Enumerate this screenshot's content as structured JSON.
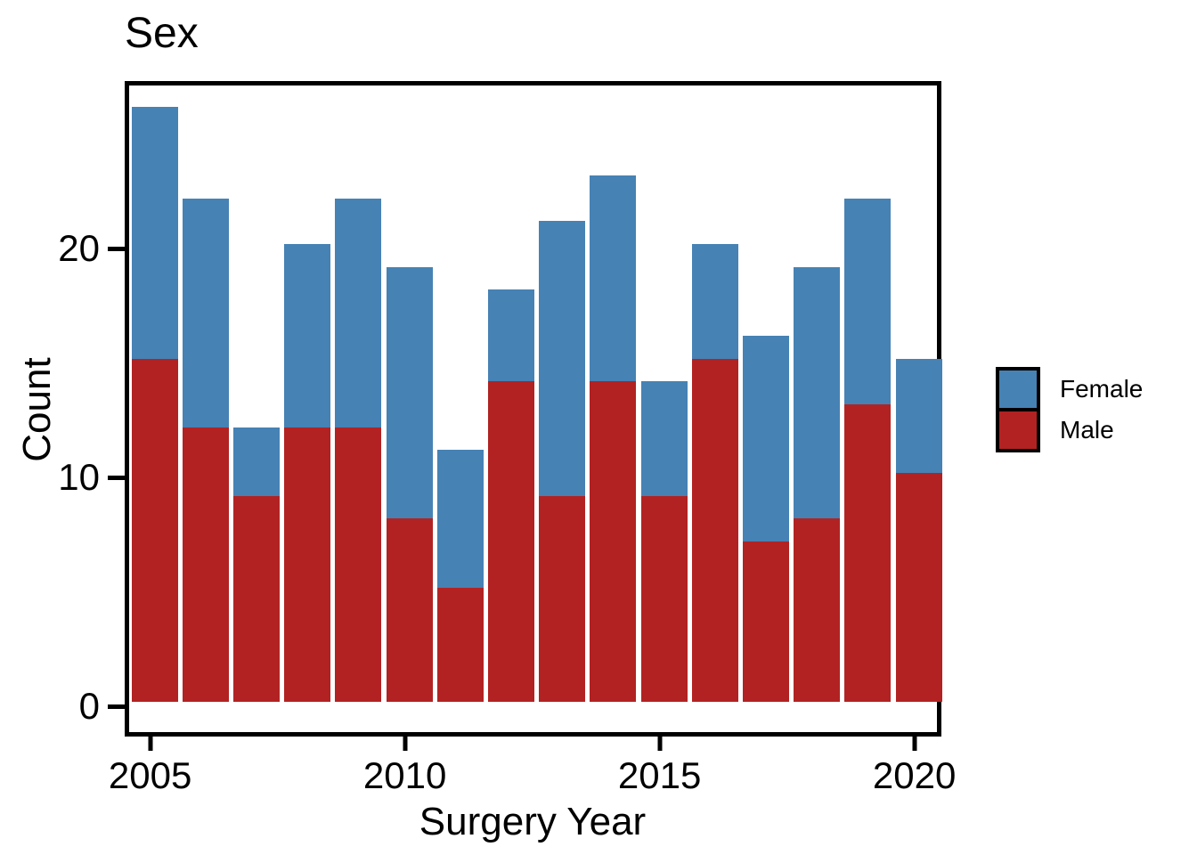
{
  "title": "Sex",
  "axes": {
    "y": {
      "label": "Count",
      "ticks": [
        "0",
        "10",
        "20"
      ],
      "tick_values": [
        0,
        10,
        20
      ]
    },
    "x": {
      "label": "Surgery Year",
      "ticks": [
        "2005",
        "2010",
        "2015",
        "2020"
      ],
      "tick_values": [
        2005,
        2010,
        2015,
        2020
      ]
    }
  },
  "legend": {
    "items": [
      {
        "label": "Female",
        "color": "#4682B4"
      },
      {
        "label": "Male",
        "color": "#B22222"
      }
    ]
  },
  "colors": {
    "female": "#4682B4",
    "male": "#B22222",
    "axis": "#000000",
    "background": "#FFFFFF"
  },
  "chart_data": {
    "type": "bar",
    "stacked": true,
    "title": "Sex",
    "xlabel": "Surgery Year",
    "ylabel": "Count",
    "categories": [
      2005,
      2006,
      2007,
      2008,
      2009,
      2010,
      2011,
      2012,
      2013,
      2014,
      2015,
      2016,
      2017,
      2018,
      2019,
      2020
    ],
    "series": [
      {
        "name": "Male",
        "color": "#B22222",
        "values": [
          15,
          12,
          9,
          12,
          12,
          8,
          5,
          14,
          9,
          14,
          9,
          15,
          7,
          8,
          13,
          10
        ]
      },
      {
        "name": "Female",
        "color": "#4682B4",
        "values": [
          11,
          10,
          3,
          8,
          10,
          11,
          6,
          4,
          12,
          9,
          5,
          5,
          9,
          11,
          9,
          5
        ]
      }
    ],
    "totals": [
      26,
      22,
      12,
      20,
      22,
      19,
      11,
      18,
      21,
      23,
      14,
      20,
      16,
      19,
      22,
      15
    ],
    "ylim": [
      0,
      27.3
    ],
    "grid": false,
    "legend_position": "right"
  }
}
